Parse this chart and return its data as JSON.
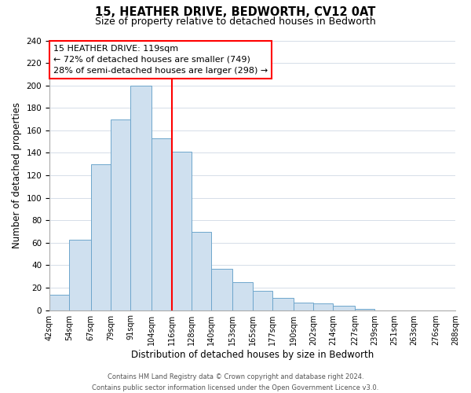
{
  "title": "15, HEATHER DRIVE, BEDWORTH, CV12 0AT",
  "subtitle": "Size of property relative to detached houses in Bedworth",
  "xlabel": "Distribution of detached houses by size in Bedworth",
  "ylabel": "Number of detached properties",
  "bin_edges": [
    42,
    54,
    67,
    79,
    91,
    104,
    116,
    128,
    140,
    153,
    165,
    177,
    190,
    202,
    214,
    227,
    239,
    251,
    263,
    276,
    288
  ],
  "counts": [
    14,
    63,
    130,
    170,
    200,
    153,
    141,
    70,
    37,
    25,
    17,
    11,
    7,
    6,
    4,
    1,
    0,
    0,
    0,
    0
  ],
  "bar_facecolor": "#cfe0ef",
  "bar_edgecolor": "#6ea6cc",
  "marker_line_x": 116,
  "marker_line_color": "red",
  "annotation_title": "15 HEATHER DRIVE: 119sqm",
  "annotation_line1": "← 72% of detached houses are smaller (749)",
  "annotation_line2": "28% of semi-detached houses are larger (298) →",
  "annotation_box_color": "red",
  "annotation_bg": "white",
  "ylim": [
    0,
    240
  ],
  "xlim_left": 42,
  "xlim_right": 288,
  "tick_labels": [
    "42sqm",
    "54sqm",
    "67sqm",
    "79sqm",
    "91sqm",
    "104sqm",
    "116sqm",
    "128sqm",
    "140sqm",
    "153sqm",
    "165sqm",
    "177sqm",
    "190sqm",
    "202sqm",
    "214sqm",
    "227sqm",
    "239sqm",
    "251sqm",
    "263sqm",
    "276sqm",
    "288sqm"
  ],
  "footer1": "Contains HM Land Registry data © Crown copyright and database right 2024.",
  "footer2": "Contains public sector information licensed under the Open Government Licence v3.0.",
  "grid_color": "#d5dde8",
  "title_fontsize": 10.5,
  "subtitle_fontsize": 9,
  "axis_label_fontsize": 8.5,
  "tick_fontsize": 7,
  "footer_fontsize": 6,
  "ann_fontsize": 8
}
